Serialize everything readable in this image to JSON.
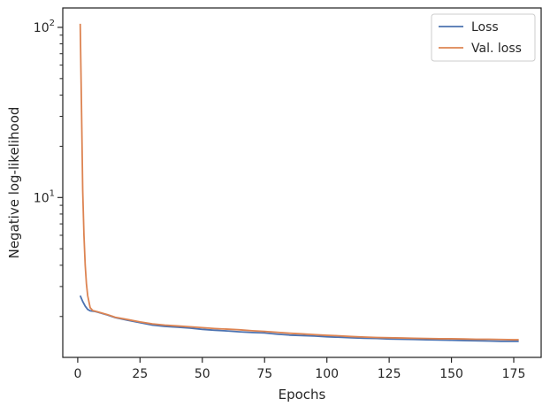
{
  "chart_data": {
    "type": "line",
    "title": "",
    "xlabel": "Epochs",
    "ylabel": "Negative log-likelihood",
    "xlim": [
      -6,
      186
    ],
    "ylim": [
      1.15,
      130
    ],
    "yscale": "log",
    "x_ticks": [
      0,
      25,
      50,
      75,
      100,
      125,
      150,
      175
    ],
    "x_tick_labels": [
      "0",
      "25",
      "50",
      "75",
      "100",
      "125",
      "150",
      "175"
    ],
    "y_major_ticks": [
      10,
      100
    ],
    "y_tick_labels": [
      "10^1",
      "10^2"
    ],
    "legend_position": "top-right",
    "grid": false,
    "series": [
      {
        "name": "Loss",
        "color": "#4c72b0",
        "x": [
          1,
          2,
          3,
          4,
          5,
          6,
          7,
          8,
          10,
          12,
          15,
          20,
          25,
          30,
          35,
          40,
          45,
          50,
          55,
          60,
          65,
          70,
          75,
          80,
          85,
          90,
          95,
          100,
          105,
          110,
          115,
          120,
          125,
          130,
          135,
          140,
          145,
          150,
          155,
          160,
          165,
          170,
          175,
          177
        ],
        "y": [
          2.65,
          2.45,
          2.3,
          2.2,
          2.16,
          2.15,
          2.14,
          2.12,
          2.08,
          2.04,
          1.97,
          1.9,
          1.84,
          1.78,
          1.75,
          1.73,
          1.71,
          1.68,
          1.66,
          1.645,
          1.625,
          1.61,
          1.6,
          1.575,
          1.555,
          1.545,
          1.535,
          1.52,
          1.51,
          1.5,
          1.49,
          1.485,
          1.475,
          1.47,
          1.465,
          1.46,
          1.455,
          1.45,
          1.445,
          1.44,
          1.435,
          1.43,
          1.43,
          1.43
        ]
      },
      {
        "name": "Val. loss",
        "color": "#dd8452",
        "x": [
          1,
          1.5,
          2,
          2.5,
          3,
          3.5,
          4,
          5,
          6,
          7,
          8,
          10,
          12,
          15,
          20,
          25,
          30,
          35,
          40,
          45,
          50,
          55,
          60,
          65,
          70,
          75,
          80,
          85,
          90,
          95,
          100,
          105,
          110,
          115,
          120,
          125,
          130,
          135,
          140,
          145,
          150,
          155,
          160,
          165,
          170,
          175,
          177
        ],
        "y": [
          105,
          35,
          11,
          6,
          4,
          3.1,
          2.65,
          2.25,
          2.17,
          2.15,
          2.13,
          2.09,
          2.05,
          1.98,
          1.92,
          1.86,
          1.81,
          1.78,
          1.76,
          1.74,
          1.72,
          1.7,
          1.685,
          1.67,
          1.65,
          1.635,
          1.615,
          1.595,
          1.58,
          1.565,
          1.55,
          1.54,
          1.525,
          1.515,
          1.505,
          1.5,
          1.495,
          1.49,
          1.485,
          1.48,
          1.48,
          1.475,
          1.47,
          1.47,
          1.465,
          1.46,
          1.46
        ]
      }
    ]
  }
}
